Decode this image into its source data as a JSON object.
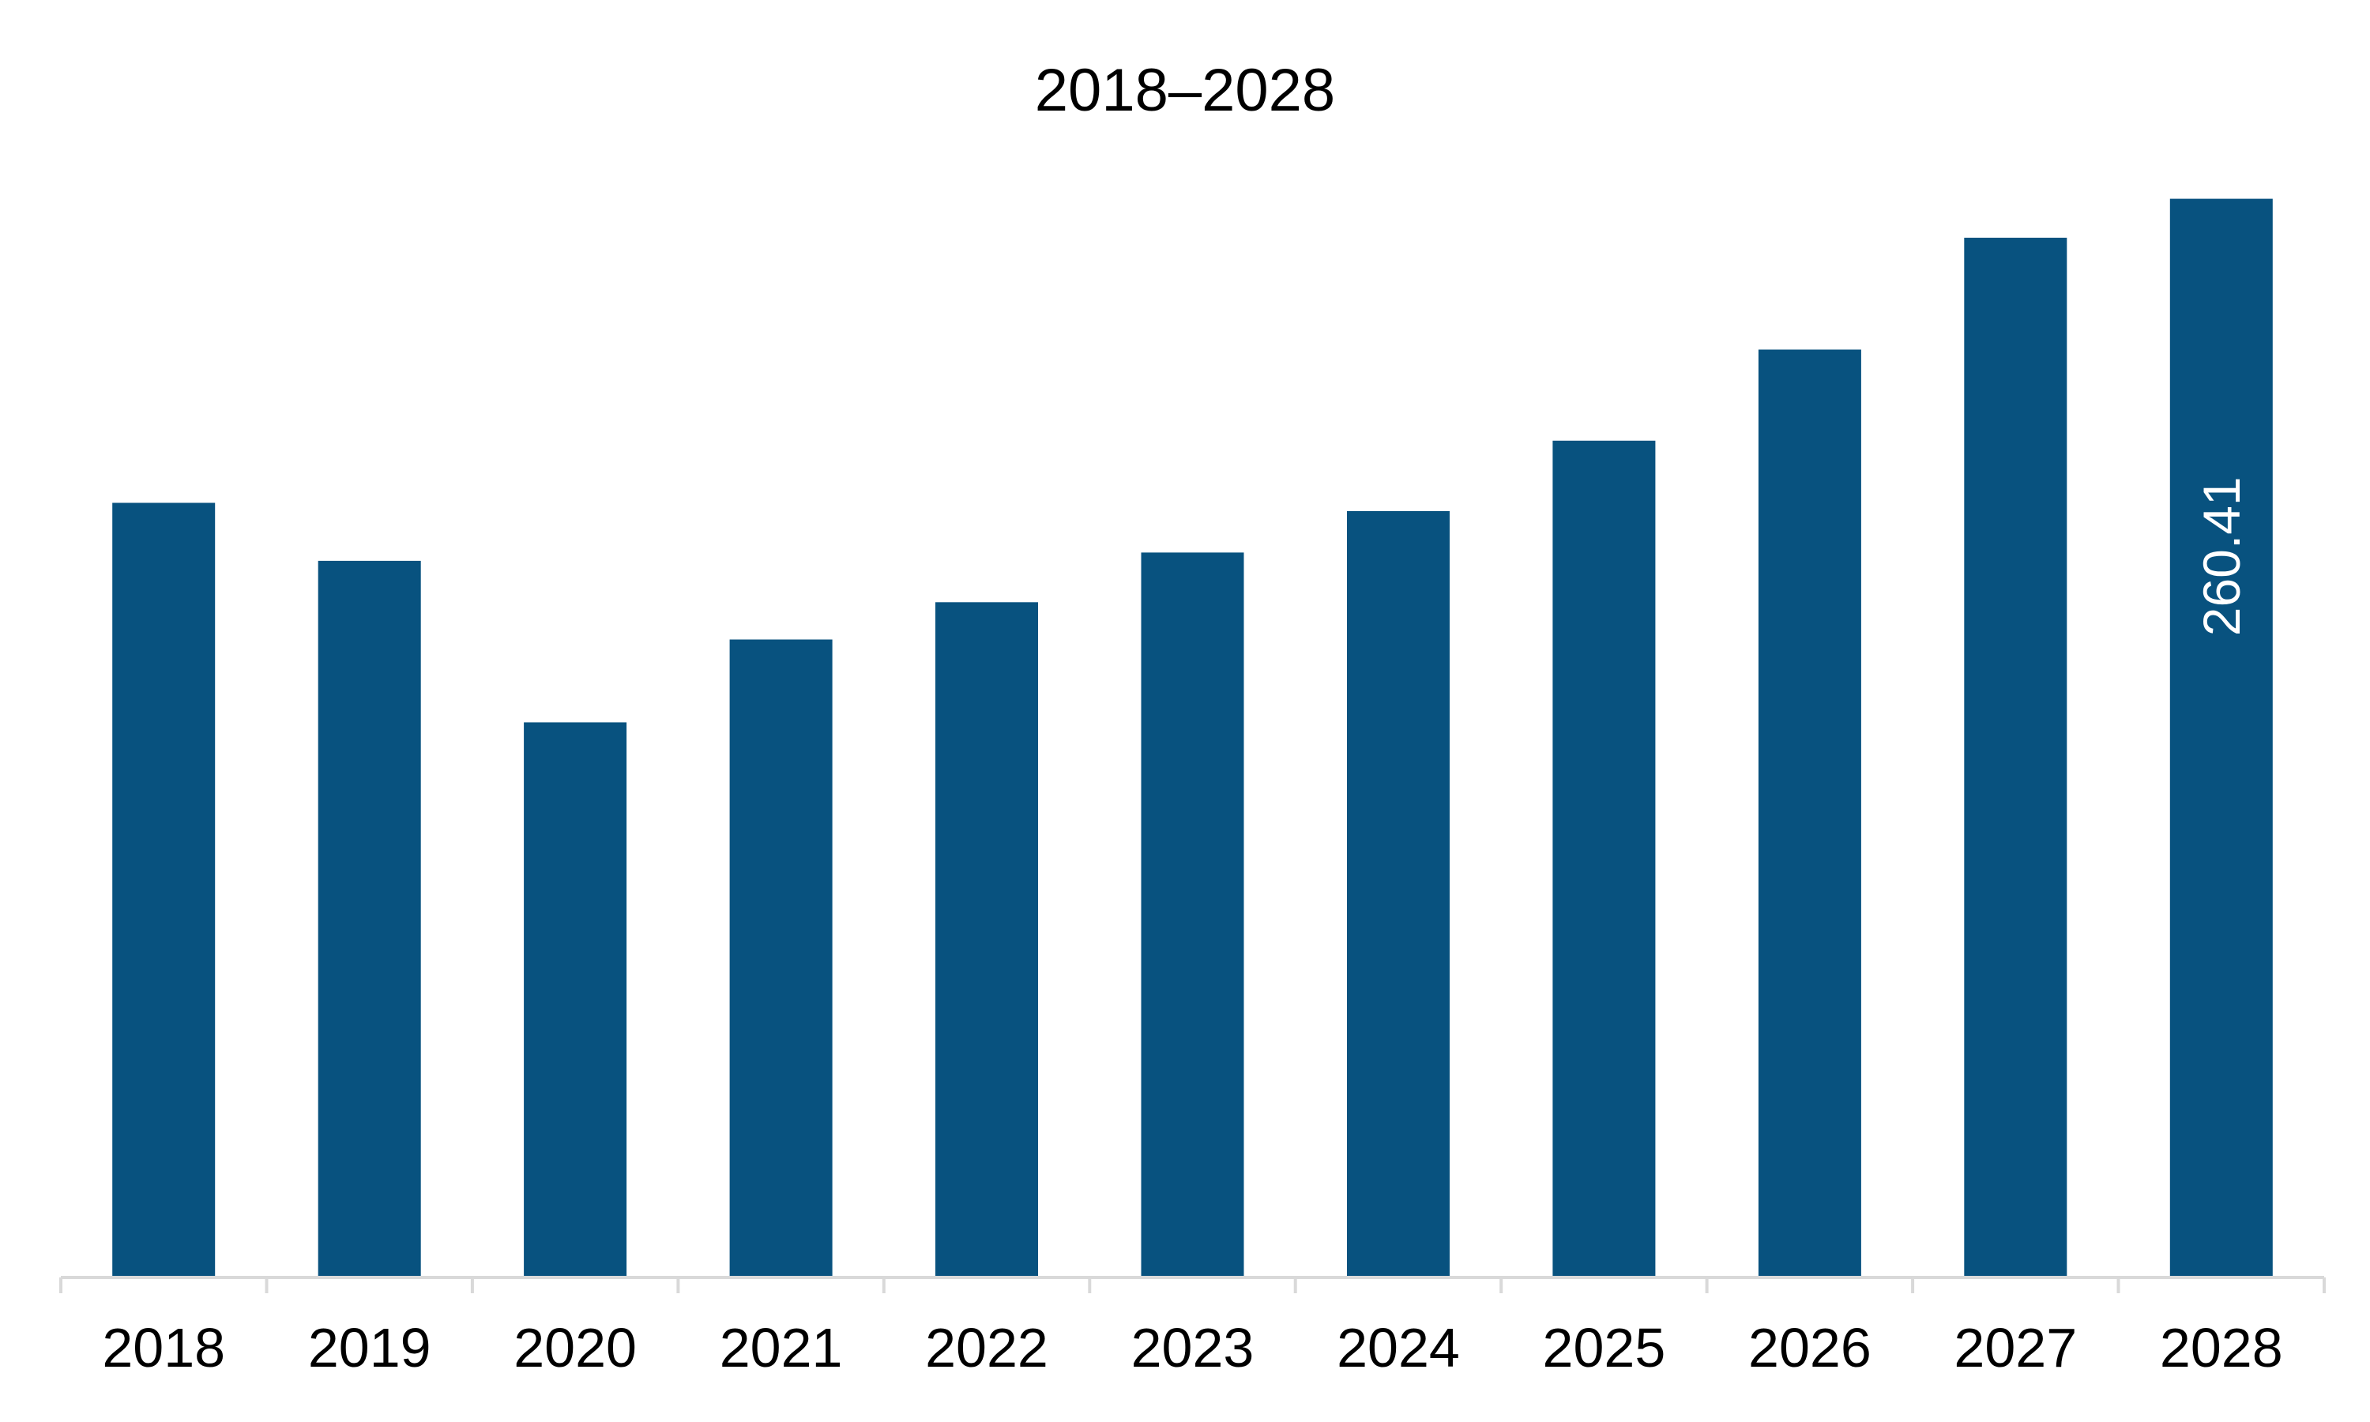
{
  "chart_data": {
    "type": "bar",
    "title": "2018–2028",
    "categories": [
      "2018",
      "2019",
      "2020",
      "2021",
      "2022",
      "2023",
      "2024",
      "2025",
      "2026",
      "2027",
      "2028"
    ],
    "series": [
      {
        "values": [
          187,
          173,
          134,
          154,
          163,
          175,
          185,
          202,
          224,
          251,
          260.41
        ],
        "data_labels": [
          "",
          "",
          "",
          "",
          "",
          "",
          "",
          "",
          "",
          "",
          "260.41"
        ]
      }
    ],
    "ylim": [
      0,
      300
    ],
    "grid": false,
    "legend": "none",
    "xlabel": "",
    "ylabel": "",
    "colors": {
      "bar": "#08527F",
      "axis": "#D9D9D9",
      "text": "#000000",
      "data_label": "#FFFFFF"
    }
  }
}
